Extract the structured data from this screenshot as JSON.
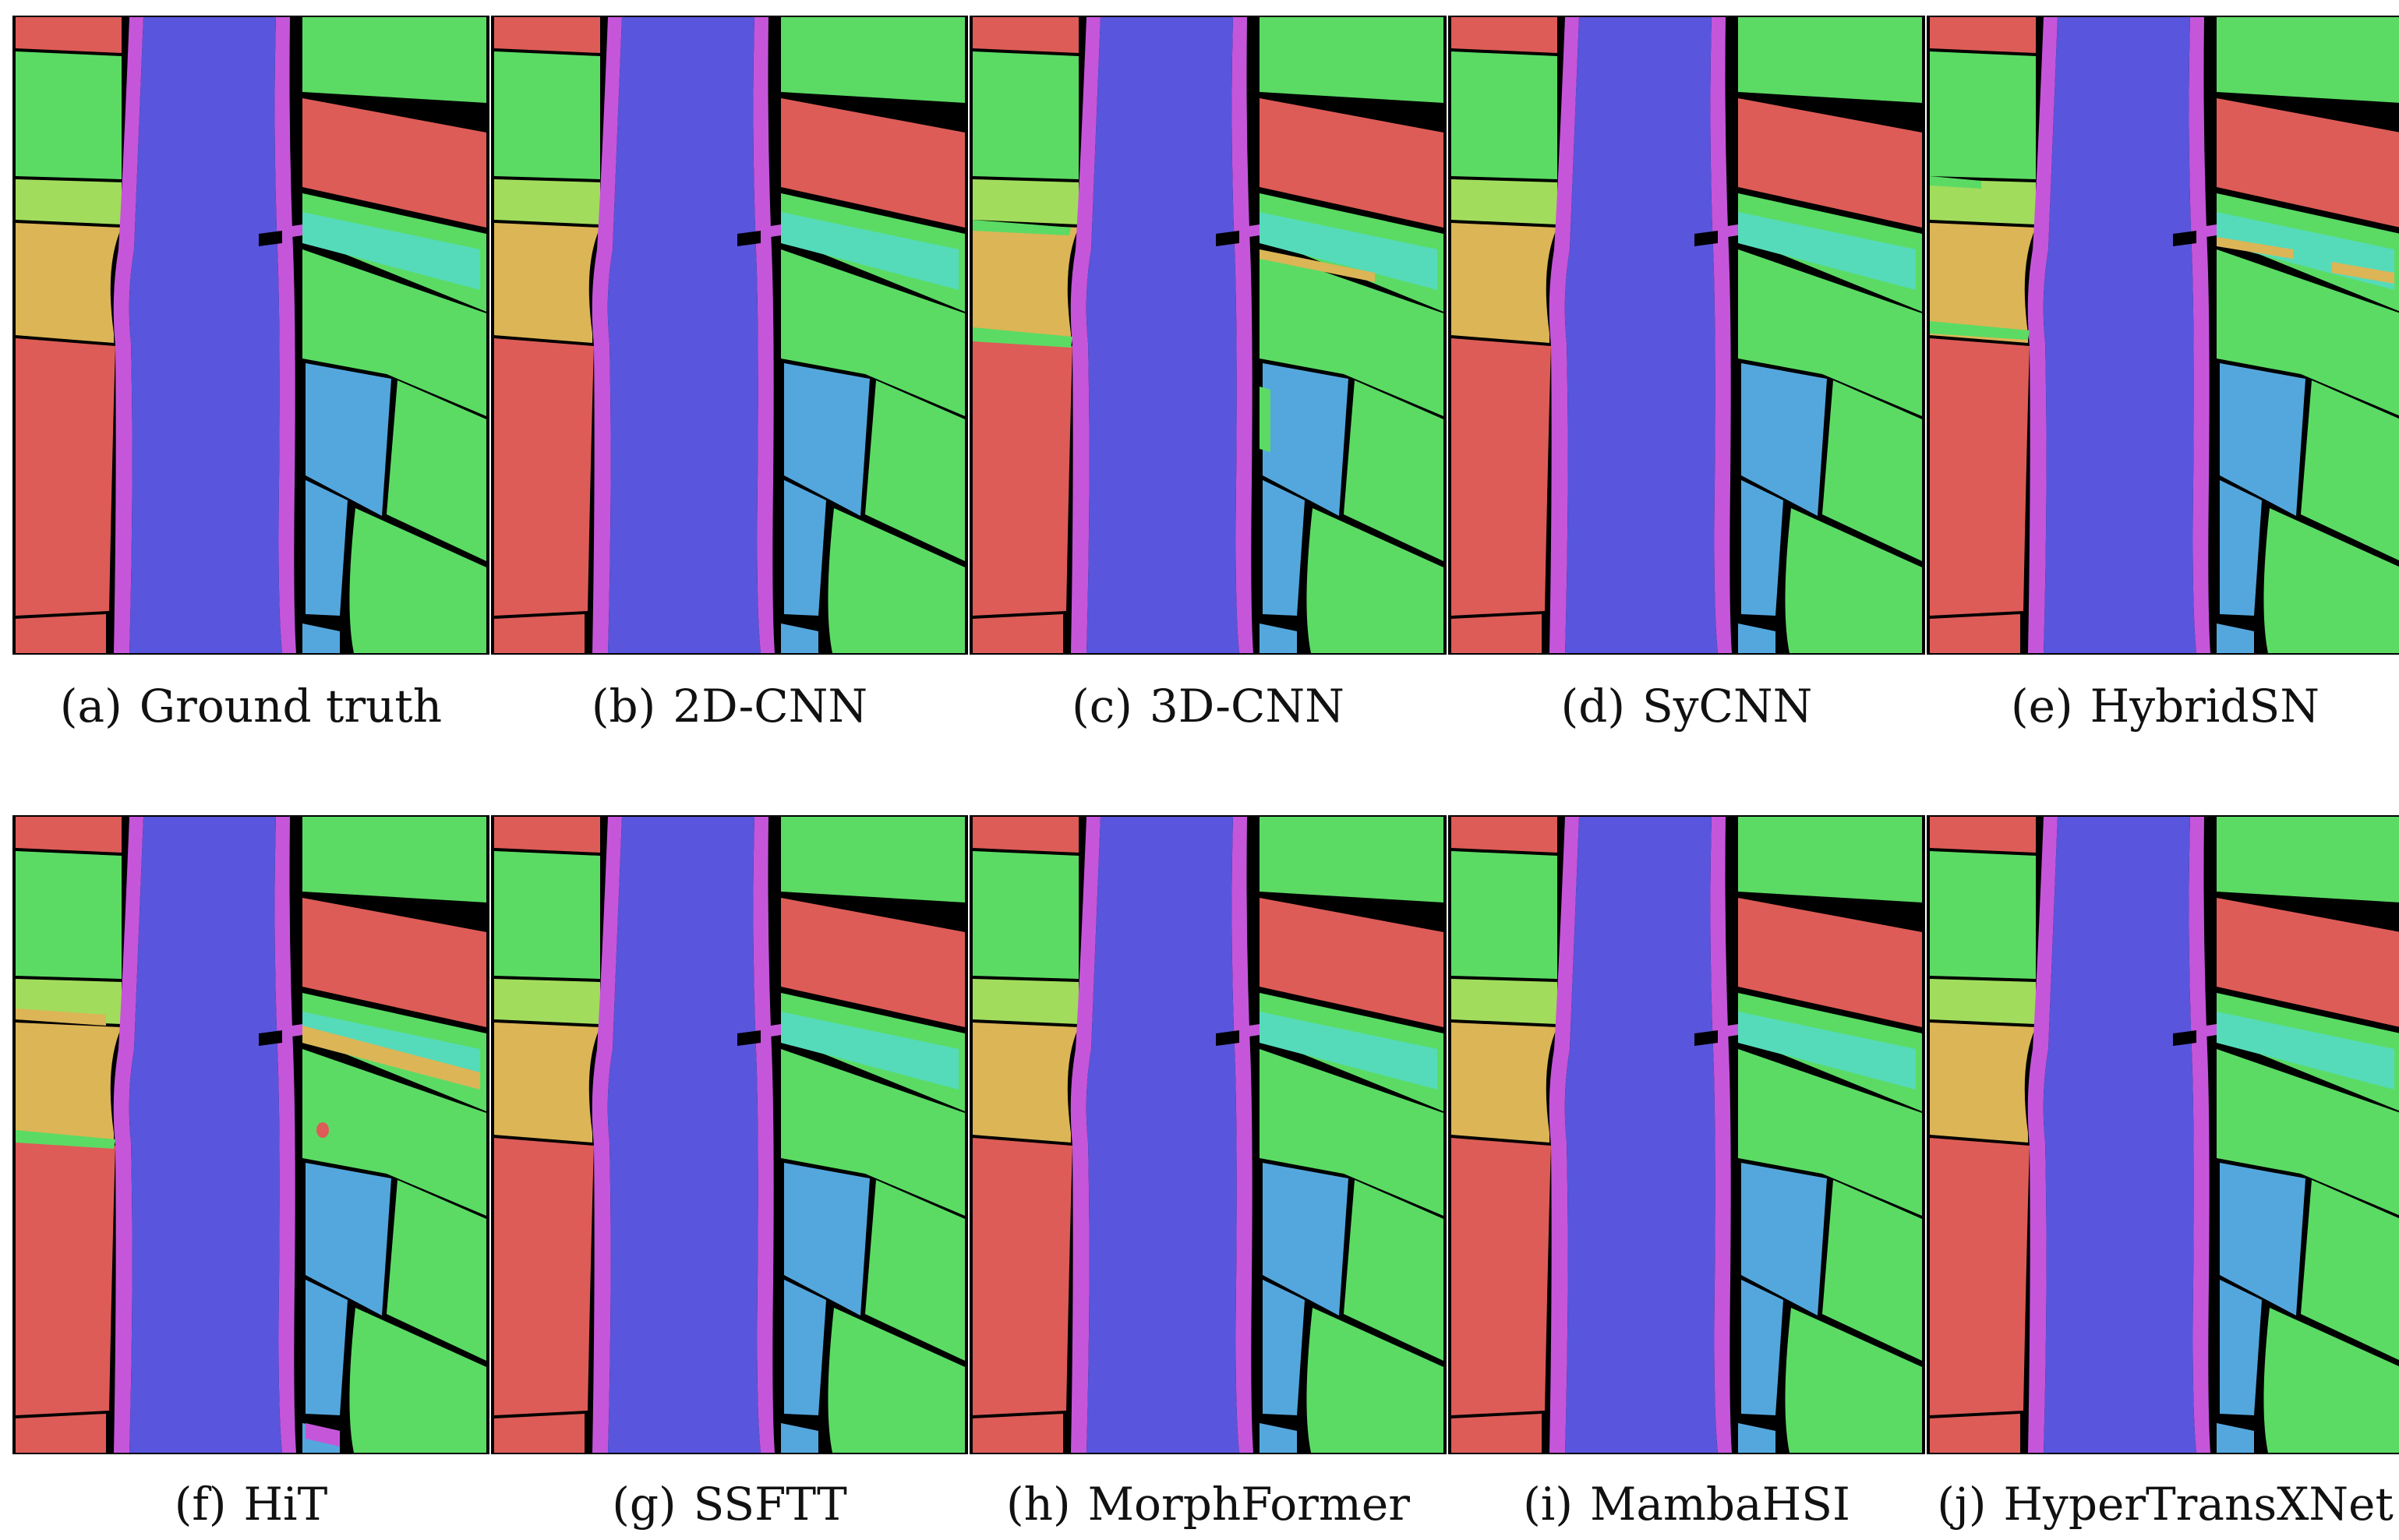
{
  "figure": {
    "panels": [
      {
        "letter": "(a)",
        "label": "Ground truth",
        "variant": "gt"
      },
      {
        "letter": "(b)",
        "label": "2D-CNN",
        "variant": "clean"
      },
      {
        "letter": "(c)",
        "label": "3D-CNN",
        "variant": "noisy-a"
      },
      {
        "letter": "(d)",
        "label": "SyCNN",
        "variant": "clean"
      },
      {
        "letter": "(e)",
        "label": "HybridSN",
        "variant": "noisy-b"
      },
      {
        "letter": "(f)",
        "label": "HiT",
        "variant": "noisy-c"
      },
      {
        "letter": "(g)",
        "label": "SSFTT",
        "variant": "clean"
      },
      {
        "letter": "(h)",
        "label": "MorphFormer",
        "variant": "clean"
      },
      {
        "letter": "(i)",
        "label": "MambaHSI",
        "variant": "clean"
      },
      {
        "letter": "(j)",
        "label": "HyperTransXNet",
        "variant": "clean"
      }
    ]
  },
  "colors": {
    "river": "#5a55dd",
    "bank": "#c556d9",
    "green": "#5bdb64",
    "red": "#dd5c57",
    "lime": "#a2dc5c",
    "yellow": "#dcb556",
    "cyan": "#55dbb9",
    "blue": "#54a7dd",
    "black": "#000000",
    "background": "#ffffff"
  }
}
